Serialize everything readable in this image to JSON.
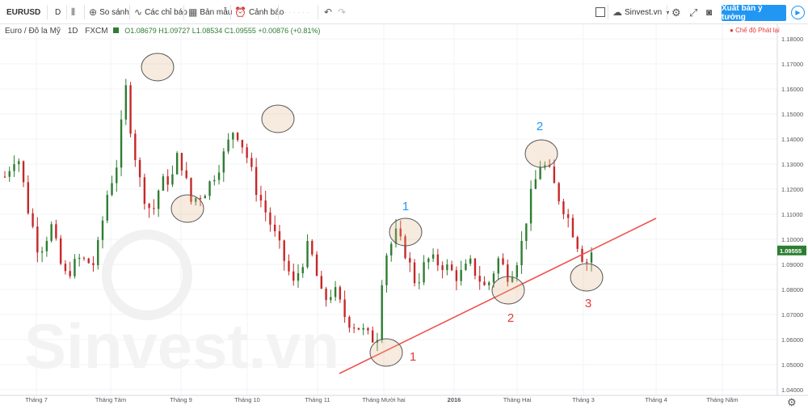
{
  "toolbar": {
    "symbol": "EURUSD",
    "interval": "D",
    "compare_label": "So sánh",
    "indicators_label": "Các chỉ báo",
    "templates_label": "Bản mẫu",
    "alerts_label": "Cảnh báo",
    "undo_icon": "undo-icon",
    "redo_icon": "redo-icon",
    "brand_label": "Sinvest.vn",
    "publish_label": "Xuất bản ý tưởng"
  },
  "legend": {
    "title": "Euro / Đô la Mỹ",
    "interval": "1D",
    "exchange": "FXCM",
    "ohlc": "O1.08679  H1.09727  L1.08534  C1.09555  +0.00876 (+0.81%)"
  },
  "live_mode": "Chế độ Phát lại",
  "watermark": "Sinvest.vn",
  "chart_data": {
    "type": "candlestick",
    "symbol": "EURUSD",
    "x_labels": [
      "Tháng 7",
      "Tháng Tám",
      "Tháng 9",
      "Tháng 10",
      "Tháng 11",
      "Tháng Mười hai",
      "2016",
      "Tháng Hai",
      "Tháng 3",
      "Tháng 4",
      "Tháng Năm"
    ],
    "y_ticks": [
      "1.18000",
      "1.17000",
      "1.16000",
      "1.15000",
      "1.14000",
      "1.13000",
      "1.12000",
      "1.11000",
      "1.10000",
      "1.09000",
      "1.08000",
      "1.07000",
      "1.06000",
      "1.05000",
      "1.04000"
    ],
    "last_price": "1.09555",
    "up_color": "#2e7d32",
    "down_color": "#c62828",
    "trendline_color": "#ef5350",
    "annotations": [
      {
        "text": "1",
        "color": "#2196f3"
      },
      {
        "text": "2",
        "color": "#2196f3"
      },
      {
        "text": "1",
        "color": "#e53935"
      },
      {
        "text": "2",
        "color": "#e53935"
      },
      {
        "text": "3",
        "color": "#e53935"
      }
    ]
  }
}
